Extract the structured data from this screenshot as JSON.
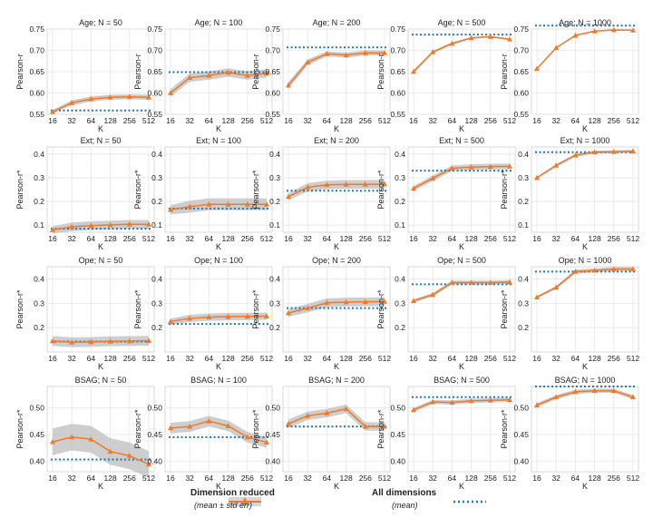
{
  "chart_data": {
    "type": "line",
    "grid": true,
    "legend": {
      "position": "bottom-center",
      "items": [
        {
          "name": "Dimension reduced",
          "sub": "(mean ± std err)",
          "color": "#f07a2a",
          "style": "line-markers-band"
        },
        {
          "name": "All dimensions",
          "sub": "(mean)",
          "color": "#1f77b4",
          "style": "dotted"
        }
      ]
    },
    "x_ticks": [
      "16",
      "32",
      "64",
      "128",
      "256",
      "512"
    ],
    "xlabel": "K",
    "rows": [
      {
        "ylabel": "Pearson-r",
        "ylim": [
          0.55,
          0.75
        ],
        "yticks": [
          "0.55",
          "0.60",
          "0.65",
          "0.70",
          "0.75"
        ],
        "panels": [
          {
            "title": "Age; N = 50",
            "values": [
              0.556,
              0.577,
              0.586,
              0.59,
              0.591,
              0.59
            ],
            "err": [
              0.004,
              0.006,
              0.006,
              0.006,
              0.006,
              0.006
            ],
            "baseline": 0.559
          },
          {
            "title": "Age; N = 100",
            "values": [
              0.6,
              0.636,
              0.641,
              0.648,
              0.641,
              0.646
            ],
            "err": [
              0.009,
              0.01,
              0.01,
              0.01,
              0.01,
              0.01
            ],
            "baseline": 0.649
          },
          {
            "title": "Age; N = 200",
            "values": [
              0.618,
              0.672,
              0.692,
              0.689,
              0.694,
              0.694
            ],
            "err": [
              0.008,
              0.007,
              0.006,
              0.006,
              0.006,
              0.006
            ],
            "baseline": 0.707
          },
          {
            "title": "Age; N = 500",
            "values": [
              0.65,
              0.696,
              0.716,
              0.729,
              0.732,
              0.726
            ],
            "err": [
              0.004,
              0.003,
              0.003,
              0.002,
              0.002,
              0.002
            ],
            "baseline": 0.737
          },
          {
            "title": "Age; N = 1000",
            "values": [
              0.657,
              0.706,
              0.735,
              0.745,
              0.748,
              0.747
            ],
            "err": [
              0.002,
              0.002,
              0.002,
              0.001,
              0.001,
              0.001
            ],
            "baseline": 0.758
          }
        ]
      },
      {
        "ylabel": "Pearson-r*",
        "ylim": [
          0.07,
          0.43
        ],
        "yticks": [
          "0.1",
          "0.2",
          "0.3",
          "0.4"
        ],
        "panels": [
          {
            "title": "Ext; N = 50",
            "values": [
              0.08,
              0.093,
              0.098,
              0.101,
              0.104,
              0.103
            ],
            "err": [
              0.015,
              0.018,
              0.018,
              0.018,
              0.018,
              0.018
            ],
            "baseline": 0.085
          },
          {
            "title": "Ext; N = 100",
            "values": [
              0.165,
              0.178,
              0.188,
              0.188,
              0.188,
              0.188
            ],
            "err": [
              0.02,
              0.025,
              0.025,
              0.025,
              0.025,
              0.025
            ],
            "baseline": 0.17
          },
          {
            "title": "Ext; N = 200",
            "values": [
              0.22,
              0.26,
              0.27,
              0.272,
              0.272,
              0.273
            ],
            "err": [
              0.015,
              0.018,
              0.018,
              0.018,
              0.018,
              0.018
            ],
            "baseline": 0.245
          },
          {
            "title": "Ext; N = 500",
            "values": [
              0.255,
              0.298,
              0.34,
              0.345,
              0.347,
              0.348
            ],
            "err": [
              0.01,
              0.012,
              0.012,
              0.012,
              0.012,
              0.012
            ],
            "baseline": 0.33
          },
          {
            "title": "Ext; N = 1000",
            "values": [
              0.3,
              0.352,
              0.395,
              0.408,
              0.41,
              0.412
            ],
            "err": [
              0.004,
              0.006,
              0.006,
              0.006,
              0.006,
              0.006
            ],
            "baseline": 0.408
          }
        ]
      },
      {
        "ylabel": "Pearson-r*",
        "ylim": [
          0.1,
          0.45
        ],
        "yticks": [
          "0.2",
          "0.3",
          "0.4"
        ],
        "panels": [
          {
            "title": "Ope; N = 50",
            "values": [
              0.145,
              0.14,
              0.141,
              0.144,
              0.145,
              0.146
            ],
            "err": [
              0.02,
              0.02,
              0.02,
              0.02,
              0.02,
              0.02
            ],
            "baseline": 0.143
          },
          {
            "title": "Ope; N = 100",
            "values": [
              0.225,
              0.238,
              0.243,
              0.245,
              0.246,
              0.247
            ],
            "err": [
              0.012,
              0.015,
              0.015,
              0.015,
              0.015,
              0.015
            ],
            "baseline": 0.215
          },
          {
            "title": "Ope; N = 200",
            "values": [
              0.26,
              0.28,
              0.302,
              0.305,
              0.306,
              0.307
            ],
            "err": [
              0.015,
              0.018,
              0.018,
              0.018,
              0.018,
              0.018
            ],
            "baseline": 0.28
          },
          {
            "title": "Ope; N = 500",
            "values": [
              0.31,
              0.335,
              0.385,
              0.385,
              0.385,
              0.387
            ],
            "err": [
              0.006,
              0.008,
              0.008,
              0.008,
              0.008,
              0.008
            ],
            "baseline": 0.378
          },
          {
            "title": "Ope; N = 1000",
            "values": [
              0.325,
              0.365,
              0.43,
              0.435,
              0.44,
              0.44
            ],
            "err": [
              0.005,
              0.006,
              0.008,
              0.008,
              0.008,
              0.008
            ],
            "baseline": 0.43
          }
        ]
      },
      {
        "ylabel": "Pearson-r*",
        "ylim": [
          0.38,
          0.54
        ],
        "yticks": [
          "0.40",
          "0.45",
          "0.50"
        ],
        "panels": [
          {
            "title": "BSAG; N = 50",
            "values": [
              0.436,
              0.445,
              0.441,
              0.418,
              0.41,
              0.394
            ],
            "err": [
              0.025,
              0.025,
              0.025,
              0.025,
              0.025,
              0.025
            ],
            "baseline": 0.403
          },
          {
            "title": "BSAG; N = 100",
            "values": [
              0.462,
              0.465,
              0.475,
              0.466,
              0.445,
              0.435
            ],
            "err": [
              0.01,
              0.01,
              0.01,
              0.01,
              0.01,
              0.01
            ],
            "baseline": 0.445
          },
          {
            "title": "BSAG; N = 200",
            "values": [
              0.47,
              0.485,
              0.49,
              0.498,
              0.465,
              0.465
            ],
            "err": [
              0.008,
              0.008,
              0.008,
              0.008,
              0.008,
              0.008
            ],
            "baseline": 0.465
          },
          {
            "title": "BSAG; N = 500",
            "values": [
              0.496,
              0.511,
              0.51,
              0.513,
              0.514,
              0.515
            ],
            "err": [
              0.004,
              0.004,
              0.004,
              0.004,
              0.004,
              0.004
            ],
            "baseline": 0.52
          },
          {
            "title": "BSAG; N = 1000",
            "values": [
              0.505,
              0.52,
              0.53,
              0.532,
              0.532,
              0.52
            ],
            "err": [
              0.004,
              0.004,
              0.004,
              0.004,
              0.004,
              0.004
            ],
            "baseline": 0.54
          }
        ]
      }
    ]
  }
}
